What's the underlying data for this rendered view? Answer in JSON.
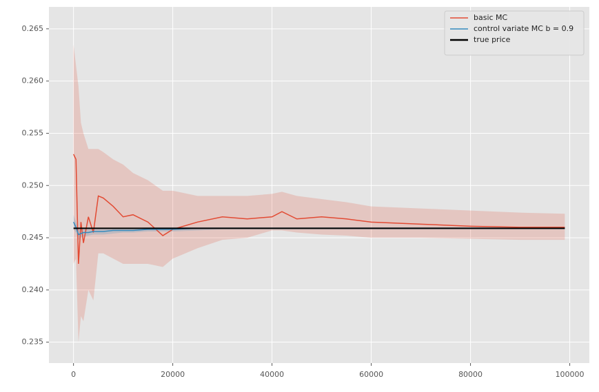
{
  "chart_data": {
    "type": "line",
    "x": [
      0,
      500,
      1000,
      1500,
      2000,
      3000,
      4000,
      5000,
      6000,
      8000,
      10000,
      12000,
      15000,
      18000,
      20000,
      25000,
      30000,
      35000,
      40000,
      42000,
      45000,
      50000,
      55000,
      60000,
      70000,
      80000,
      90000,
      99000
    ],
    "series": [
      {
        "name": "basic MC",
        "color": "#e24a33",
        "values": [
          0.253,
          0.2525,
          0.2425,
          0.2465,
          0.2445,
          0.247,
          0.2455,
          0.249,
          0.2488,
          0.248,
          0.247,
          0.2472,
          0.2465,
          0.2452,
          0.2458,
          0.2465,
          0.247,
          0.2468,
          0.247,
          0.2475,
          0.2468,
          0.247,
          0.2468,
          0.2465,
          0.2463,
          0.2461,
          0.246,
          0.246
        ],
        "band_upper": [
          0.2635,
          0.2615,
          0.2595,
          0.256,
          0.255,
          0.2535,
          0.2535,
          0.2535,
          0.2532,
          0.2525,
          0.252,
          0.2512,
          0.2505,
          0.2495,
          0.2495,
          0.249,
          0.249,
          0.249,
          0.2492,
          0.2494,
          0.249,
          0.2487,
          0.2484,
          0.248,
          0.2478,
          0.2476,
          0.2474,
          0.2473
        ],
        "band_lower": [
          0.2425,
          0.243,
          0.235,
          0.2375,
          0.237,
          0.24,
          0.239,
          0.2435,
          0.2435,
          0.243,
          0.2425,
          0.2425,
          0.2425,
          0.2422,
          0.243,
          0.244,
          0.2448,
          0.245,
          0.2457,
          0.2457,
          0.2455,
          0.2453,
          0.2452,
          0.245,
          0.245,
          0.2449,
          0.2448,
          0.2448
        ]
      },
      {
        "name": "control variate MC b = 0.9",
        "color": "#348abd",
        "values": [
          0.2465,
          0.246,
          0.2453,
          0.2454,
          0.2455,
          0.2455,
          0.2456,
          0.2456,
          0.2456,
          0.2457,
          0.2457,
          0.2457,
          0.2458,
          0.2458,
          0.2458,
          0.2459,
          0.2459,
          0.2459,
          0.2459,
          0.2459,
          0.2459,
          0.2459,
          0.2459,
          0.2459,
          0.2459,
          0.2459,
          0.2459,
          0.2459
        ],
        "band_upper": [
          0.2472,
          0.2465,
          0.2458,
          0.2458,
          0.2459,
          0.2459,
          0.2459,
          0.2459,
          0.2459,
          0.2459,
          0.2459,
          0.2459,
          0.246,
          0.246,
          0.246,
          0.246,
          0.246,
          0.246,
          0.246,
          0.246,
          0.246,
          0.246,
          0.246,
          0.246,
          0.246,
          0.246,
          0.246,
          0.246
        ],
        "band_lower": [
          0.2458,
          0.2455,
          0.2448,
          0.245,
          0.2451,
          0.2452,
          0.2453,
          0.2453,
          0.2453,
          0.2454,
          0.2455,
          0.2455,
          0.2456,
          0.2456,
          0.2456,
          0.2457,
          0.2458,
          0.2458,
          0.2458,
          0.2458,
          0.2458,
          0.2458,
          0.2458,
          0.2458,
          0.2458,
          0.2458,
          0.2458,
          0.2458
        ]
      },
      {
        "name": "true price",
        "color": "#000000",
        "values": [
          0.2459,
          0.2459,
          0.2459,
          0.2459,
          0.2459,
          0.2459,
          0.2459,
          0.2459,
          0.2459,
          0.2459,
          0.2459,
          0.2459,
          0.2459,
          0.2459,
          0.2459,
          0.2459,
          0.2459,
          0.2459,
          0.2459,
          0.2459,
          0.2459,
          0.2459,
          0.2459,
          0.2459,
          0.2459,
          0.2459,
          0.2459,
          0.2459
        ]
      }
    ],
    "xlim": [
      -4950,
      103950
    ],
    "xticks": [
      0,
      20000,
      40000,
      60000,
      80000,
      100000
    ],
    "ylim": [
      0.233,
      0.2671
    ],
    "yticks": [
      0.235,
      {
        "value": 0.24,
        "label": "0.240"
      },
      0.245,
      {
        "value": 0.25,
        "label": "0.250"
      },
      0.255,
      {
        "value": 0.26,
        "label": "0.260"
      },
      0.265
    ],
    "grid": true,
    "legend": "upper right"
  }
}
